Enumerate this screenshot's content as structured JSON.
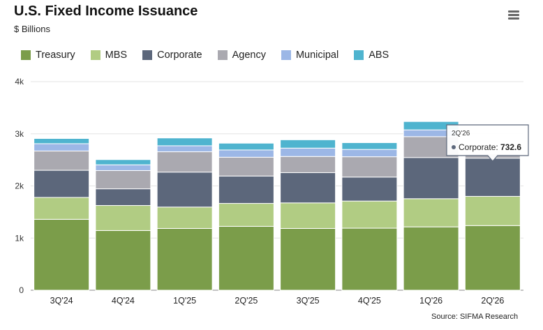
{
  "header": {
    "title": "U.S. Fixed Income Issuance",
    "subtitle": "$ Billions"
  },
  "source": "Source: SIFMA Research",
  "tooltip": {
    "period": "2Q'26",
    "series": "Corporate",
    "value": "732.6"
  },
  "colors": {
    "Treasury": "#7b9d4a",
    "MBS": "#b1cc83",
    "Corporate": "#5c677b",
    "Agency": "#aaa9b0",
    "Municipal": "#9cb7e6",
    "ABS": "#4fb4cf"
  },
  "chart_data": {
    "type": "bar",
    "stacked": true,
    "categories": [
      "3Q'24",
      "4Q'24",
      "1Q'25",
      "2Q'25",
      "3Q'25",
      "4Q'25",
      "1Q'26",
      "2Q'26"
    ],
    "series": [
      {
        "name": "Treasury",
        "values": [
          1360,
          1145,
          1185,
          1225,
          1185,
          1190,
          1215,
          1240
        ]
      },
      {
        "name": "MBS",
        "values": [
          420,
          480,
          410,
          440,
          490,
          520,
          540,
          560
        ]
      },
      {
        "name": "Corporate",
        "values": [
          520,
          320,
          670,
          525,
          580,
          460,
          790,
          732.6
        ]
      },
      {
        "name": "Agency",
        "values": [
          370,
          350,
          390,
          360,
          310,
          390,
          400,
          80
        ]
      },
      {
        "name": "Municipal",
        "values": [
          140,
          110,
          115,
          140,
          160,
          140,
          130,
          0
        ]
      },
      {
        "name": "ABS",
        "values": [
          100,
          100,
          150,
          130,
          160,
          130,
          160,
          0
        ]
      }
    ],
    "yticks": [
      "0",
      "1k",
      "2k",
      "3k",
      "4k"
    ],
    "ylim": [
      0,
      4000
    ],
    "grid": true,
    "legend": "top-left",
    "xlabel": "",
    "ylabel": ""
  }
}
